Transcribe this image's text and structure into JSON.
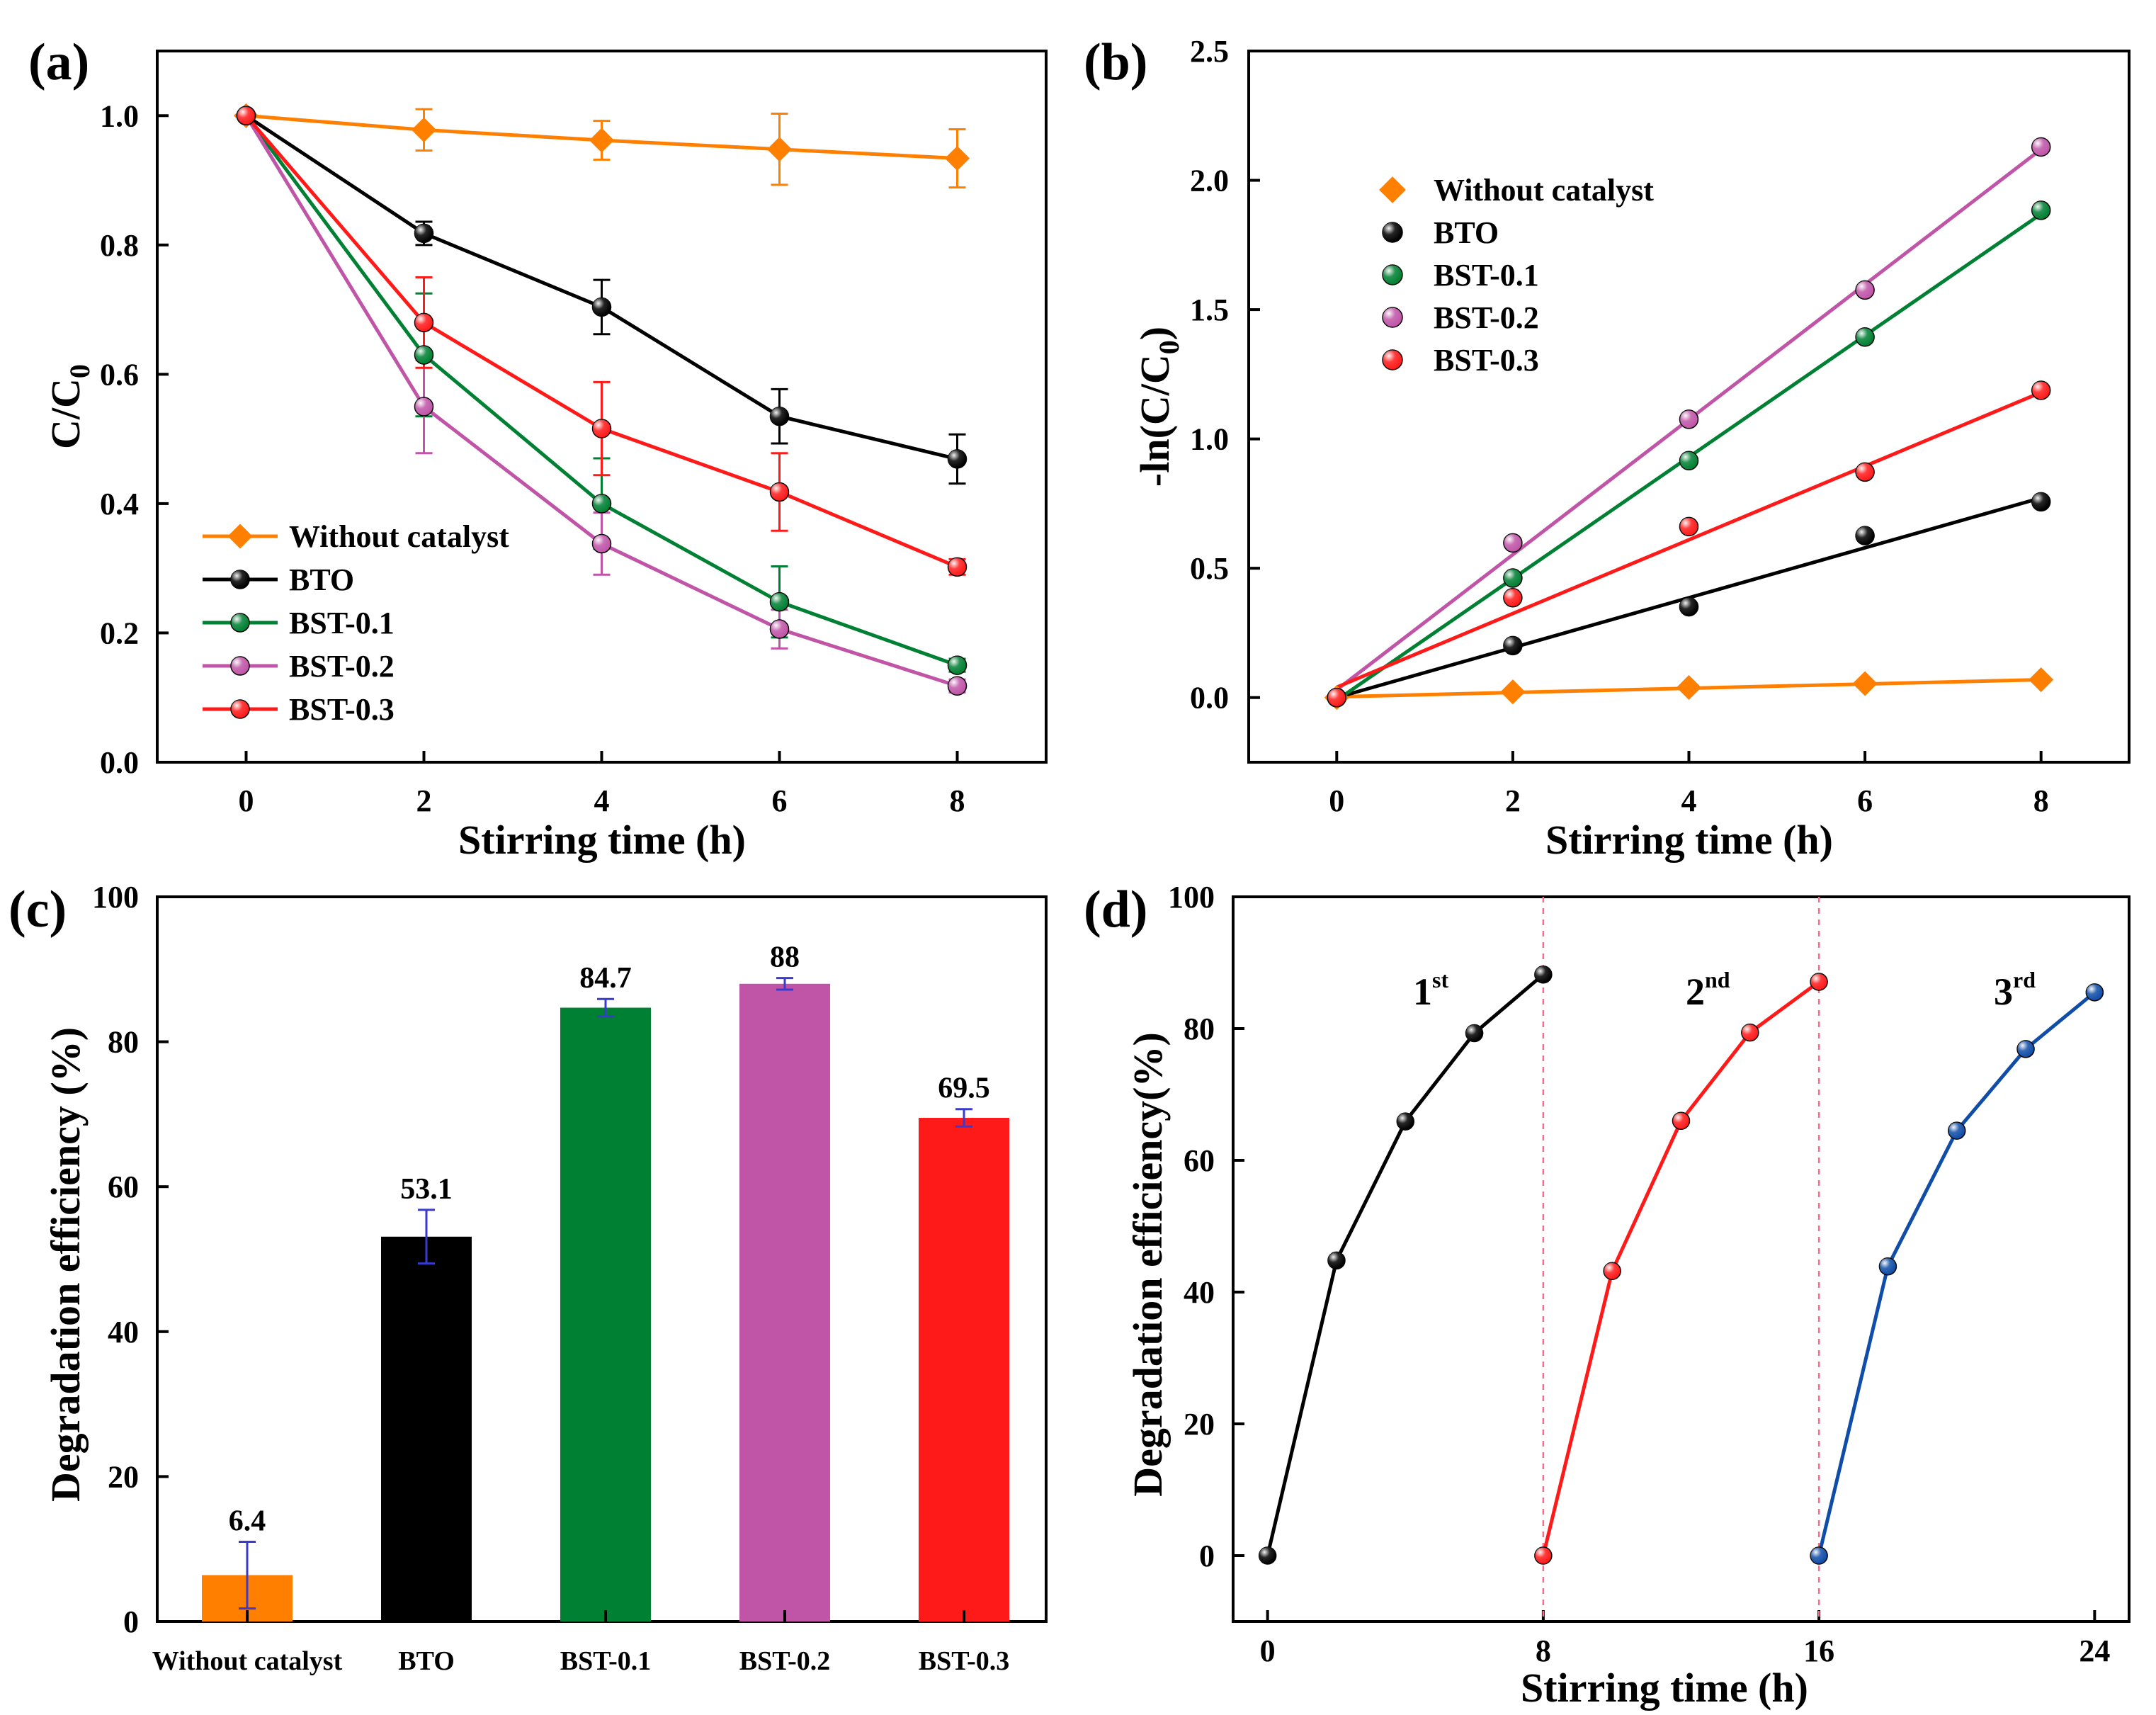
{
  "colors": {
    "without": "#FF8000",
    "bto": "#000000",
    "bst01": "#008033",
    "bst02": "#C055A8",
    "bst03": "#FF1A1A",
    "cycle3": "#0F4DA8",
    "errbar": "#3A3ACC"
  },
  "chart_data": [
    {
      "panel": "(a)",
      "type": "line",
      "xlabel": "Stirring time (h)",
      "ylabel_main": "C/C",
      "ylabel_sub": "0",
      "x": [
        0,
        2,
        4,
        6,
        8
      ],
      "xlim": [
        -1,
        9
      ],
      "ylim": [
        0,
        1.1
      ],
      "xticks": [
        "0",
        "2",
        "4",
        "6",
        "8"
      ],
      "yticks": [
        "0.0",
        "0.2",
        "0.4",
        "0.6",
        "0.8",
        "1.0"
      ],
      "legend_position": "bottom-left",
      "series": [
        {
          "name": "Without catalyst",
          "key": "without",
          "marker": "diamond",
          "values": [
            1.0,
            0.978,
            0.962,
            0.948,
            0.934
          ],
          "err": [
            0,
            0.032,
            0.03,
            0.055,
            0.045
          ]
        },
        {
          "name": "BTO",
          "key": "bto",
          "marker": "ball",
          "values": [
            1.0,
            0.818,
            0.704,
            0.535,
            0.469
          ],
          "err": [
            0,
            0.018,
            0.042,
            0.042,
            0.038
          ]
        },
        {
          "name": "BST-0.1",
          "key": "bst01",
          "marker": "ball",
          "values": [
            1.0,
            0.63,
            0.4,
            0.248,
            0.15
          ],
          "err": [
            0,
            0.095,
            0.07,
            0.055,
            0.01
          ]
        },
        {
          "name": "BST-0.2",
          "key": "bst02",
          "marker": "ball",
          "values": [
            1.0,
            0.55,
            0.338,
            0.206,
            0.118
          ],
          "err": [
            0,
            0.072,
            0.048,
            0.03,
            0.01
          ]
        },
        {
          "name": "BST-0.3",
          "key": "bst03",
          "marker": "ball",
          "values": [
            1.0,
            0.68,
            0.516,
            0.418,
            0.302
          ],
          "err": [
            0,
            0.07,
            0.072,
            0.06,
            0.012
          ]
        }
      ]
    },
    {
      "panel": "(b)",
      "type": "scatter",
      "xlabel": "Stirring time (h)",
      "ylabel_main": "-ln(C/C",
      "ylabel_sub": "0",
      "ylabel_tail": ")",
      "x": [
        0,
        2,
        4,
        6,
        8
      ],
      "xlim": [
        -1,
        9
      ],
      "ylim": [
        -0.25,
        2.5
      ],
      "xticks": [
        "0",
        "2",
        "4",
        "6",
        "8"
      ],
      "yticks": [
        "0.0",
        "0.5",
        "1.0",
        "1.5",
        "2.0",
        "2.5"
      ],
      "legend_position": "top-left",
      "series": [
        {
          "name": "Without catalyst",
          "key": "without",
          "marker": "diamond",
          "values": [
            0.0,
            0.022,
            0.039,
            0.054,
            0.069
          ],
          "fit": [
            0.003,
            0.069
          ]
        },
        {
          "name": "BTO",
          "key": "bto",
          "marker": "ball",
          "values": [
            0.0,
            0.201,
            0.351,
            0.626,
            0.757
          ],
          "fit": [
            0.0,
            0.772
          ]
        },
        {
          "name": "BST-0.1",
          "key": "bst01",
          "marker": "ball",
          "values": [
            0.0,
            0.462,
            0.916,
            1.394,
            1.884
          ],
          "fit": [
            -0.01,
            1.87
          ]
        },
        {
          "name": "BST-0.2",
          "key": "bst02",
          "marker": "ball",
          "values": [
            0.0,
            0.598,
            1.076,
            1.576,
            2.129
          ],
          "fit": [
            0.03,
            2.12
          ]
        },
        {
          "name": "BST-0.3",
          "key": "bst03",
          "marker": "ball",
          "values": [
            0.0,
            0.386,
            0.661,
            0.872,
            1.188
          ],
          "fit": [
            0.04,
            1.18
          ]
        }
      ]
    },
    {
      "panel": "(c)",
      "type": "bar",
      "ylabel": "Degradation efficiency (%)",
      "categories": [
        "Without catalyst",
        "BTO",
        "BST-0.1",
        "BST-0.2",
        "BST-0.3"
      ],
      "keys": [
        "without",
        "bto",
        "bst01",
        "bst02",
        "bst03"
      ],
      "values": [
        6.4,
        53.1,
        84.7,
        88,
        69.5
      ],
      "value_labels": [
        "6.4",
        "53.1",
        "84.7",
        "88",
        "69.5"
      ],
      "err": [
        4.6,
        3.7,
        1.2,
        0.8,
        1.2
      ],
      "ylim": [
        0,
        100
      ],
      "yticks": [
        "0",
        "20",
        "40",
        "60",
        "80",
        "100"
      ]
    },
    {
      "panel": "(d)",
      "type": "line",
      "xlabel": "Stirring time (h)",
      "ylabel": "Degradation efficiency(%)",
      "xlim": [
        0,
        24
      ],
      "ylim": [
        -10,
        100
      ],
      "xticks": [
        "0",
        "8",
        "16",
        "24"
      ],
      "yticks": [
        "0",
        "20",
        "40",
        "60",
        "80",
        "100"
      ],
      "separators": [
        8,
        16
      ],
      "cycles": [
        {
          "label": "1",
          "sup": "st",
          "key": "bto",
          "x": [
            0,
            2,
            4,
            6,
            8
          ],
          "values": [
            0,
            44.8,
            65.9,
            79.3,
            88.2
          ]
        },
        {
          "label": "2",
          "sup": "nd",
          "key": "bst03",
          "x": [
            8,
            10,
            12,
            14,
            16
          ],
          "values": [
            0,
            43.2,
            66.0,
            79.4,
            87.1
          ]
        },
        {
          "label": "3",
          "sup": "rd",
          "key": "cycle3",
          "x": [
            16,
            18,
            20,
            22,
            24
          ],
          "values": [
            0,
            43.9,
            64.5,
            76.9,
            85.5
          ]
        }
      ]
    }
  ]
}
